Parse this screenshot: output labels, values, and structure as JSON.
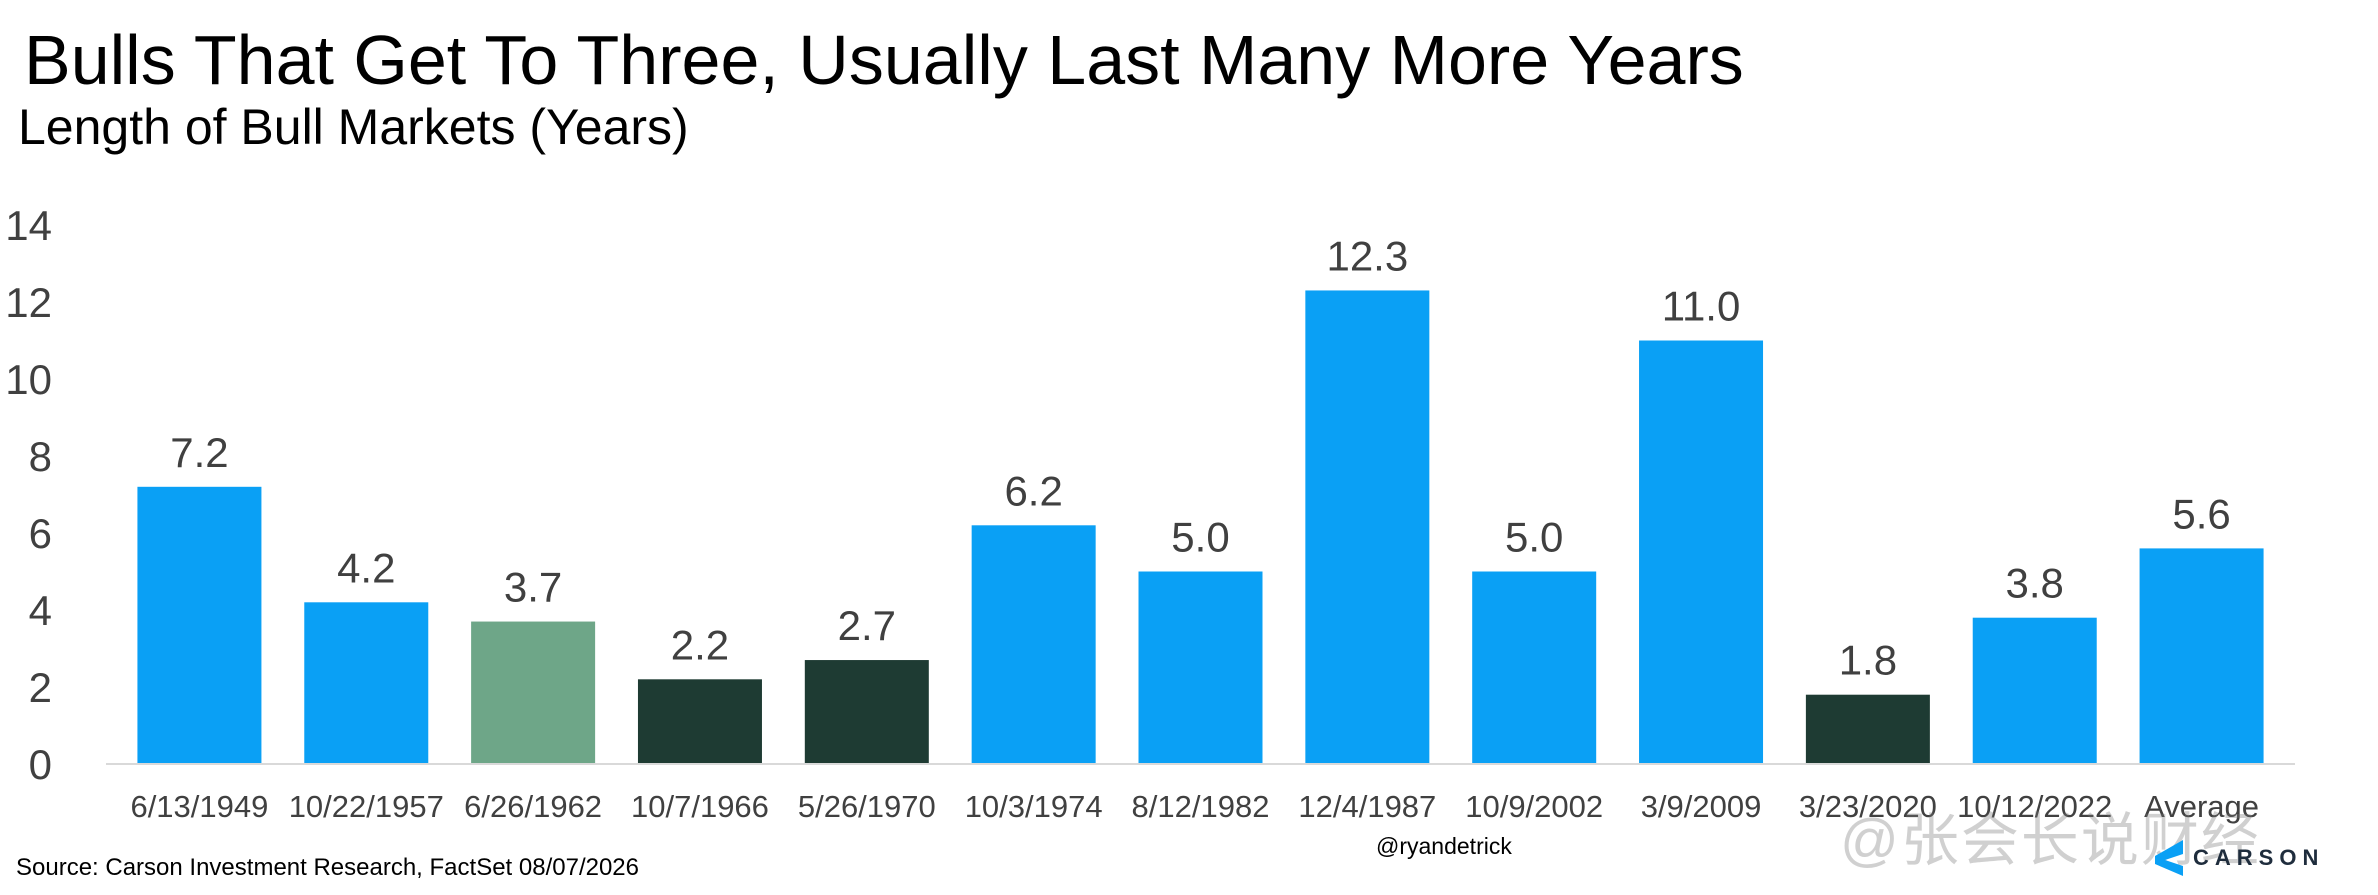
{
  "title": "Bulls That Get To Three, Usually Last Many More Years",
  "subtitle": "Length of Bull Markets (Years)",
  "source": "Source: Carson Investment Research, FactSet 08/07/2026",
  "handle": "@ryandetrick",
  "watermark": "@张会长说财经",
  "logo_text": "CARSON",
  "colors": {
    "blue": "#0aa0f5",
    "green": "#6ea688",
    "dark": "#1e3b33",
    "axis": "#d9d9d9",
    "text": "#404040"
  },
  "chart_data": {
    "type": "bar",
    "ylim": [
      0,
      14
    ],
    "yticks": [
      0,
      2,
      4,
      6,
      8,
      10,
      12,
      14
    ],
    "grid": false,
    "categories": [
      "6/13/1949",
      "10/22/1957",
      "6/26/1962",
      "10/7/1966",
      "5/26/1970",
      "10/3/1974",
      "8/12/1982",
      "12/4/1987",
      "10/9/2002",
      "3/9/2009",
      "3/23/2020",
      "10/12/2022",
      "Average"
    ],
    "values": [
      7.2,
      4.2,
      3.7,
      2.2,
      2.7,
      6.2,
      5.0,
      12.3,
      5.0,
      11.0,
      1.8,
      3.8,
      5.6
    ],
    "value_labels": [
      "7.2",
      "4.2",
      "3.7",
      "2.2",
      "2.7",
      "6.2",
      "5.0",
      "12.3",
      "5.0",
      "11.0",
      "1.8",
      "3.8",
      "5.6"
    ],
    "bar_colors": [
      "blue",
      "blue",
      "green",
      "dark",
      "dark",
      "blue",
      "blue",
      "blue",
      "blue",
      "blue",
      "dark",
      "blue",
      "blue"
    ]
  }
}
